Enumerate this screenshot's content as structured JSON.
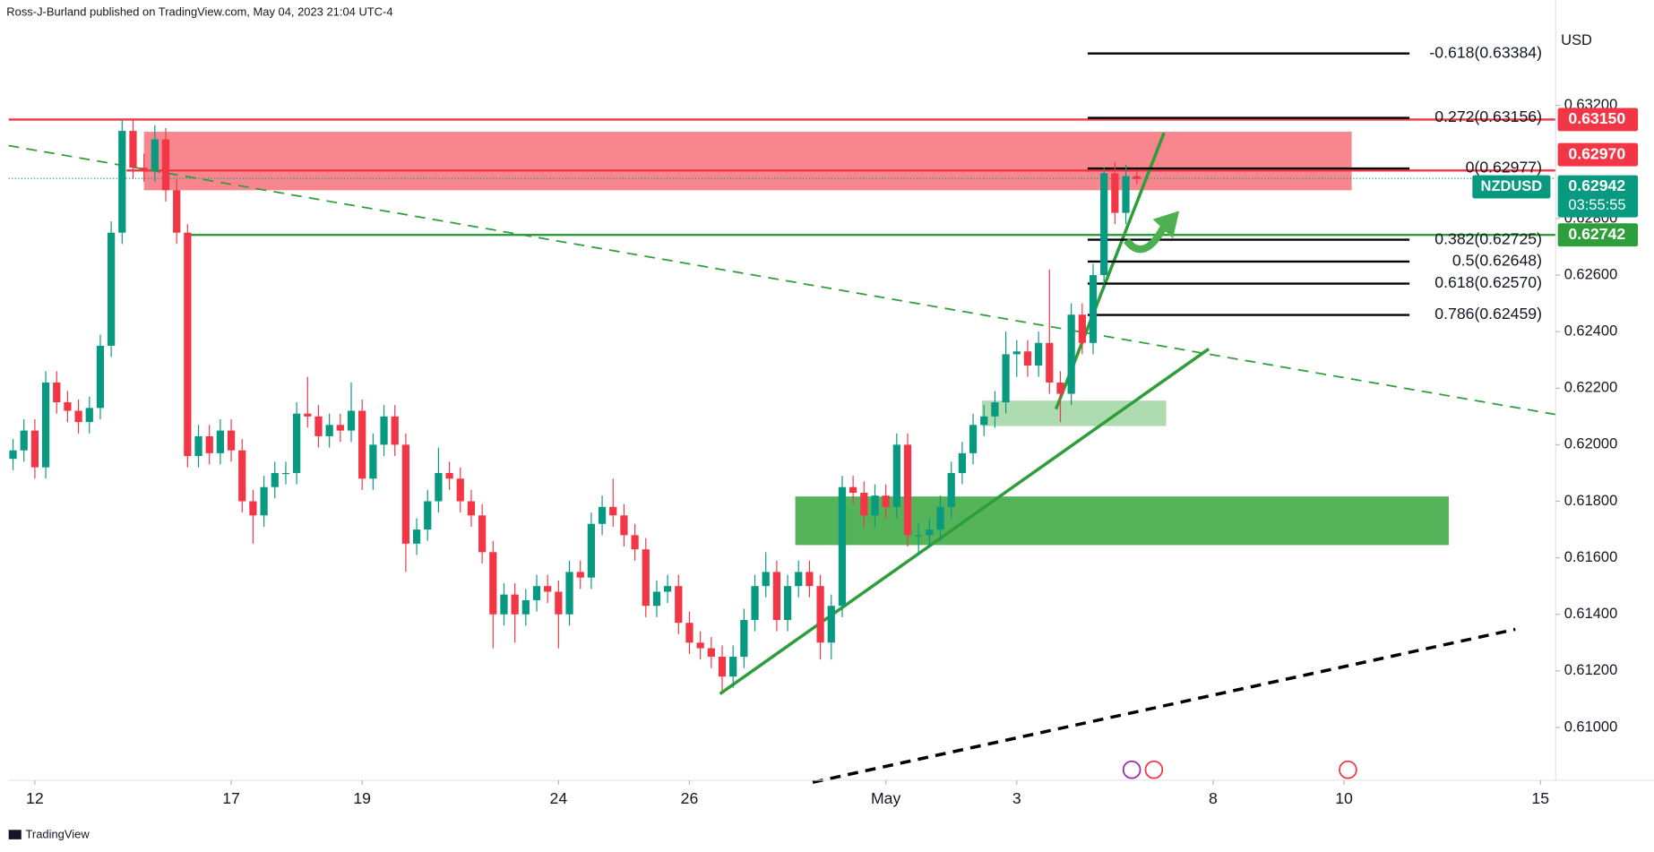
{
  "chart_data": {
    "type": "candlestick",
    "header": "Ross-J-Burland published on TradingView.com, May 04, 2023 21:04 UTC-4",
    "currency": "USD",
    "symbol": "NZDUSD",
    "countdown": "03:55:55",
    "footer": "TradingView",
    "up_color": "#089981",
    "down_color": "#f23645",
    "xlim": [
      -2.4,
      139.4
    ],
    "ylim": [
      0.60813,
      0.63573
    ],
    "xticks": [
      {
        "value": 0,
        "label": "12"
      },
      {
        "value": 18,
        "label": "17"
      },
      {
        "value": 30,
        "label": "19"
      },
      {
        "value": 48,
        "label": "24"
      },
      {
        "value": 60,
        "label": "26"
      },
      {
        "value": 78,
        "label": "May"
      },
      {
        "value": 90,
        "label": "3"
      },
      {
        "value": 108,
        "label": "8"
      },
      {
        "value": 120,
        "label": "10"
      },
      {
        "value": 138,
        "label": "15"
      }
    ],
    "yticks": [
      {
        "value": 0.632,
        "label": "0.63200"
      },
      {
        "value": 0.628,
        "label": "0.62800"
      },
      {
        "value": 0.626,
        "label": "0.62600"
      },
      {
        "value": 0.624,
        "label": "0.62400"
      },
      {
        "value": 0.622,
        "label": "0.62200"
      },
      {
        "value": 0.62,
        "label": "0.62000"
      },
      {
        "value": 0.618,
        "label": "0.61800"
      },
      {
        "value": 0.616,
        "label": "0.61600"
      },
      {
        "value": 0.614,
        "label": "0.61400"
      },
      {
        "value": 0.612,
        "label": "0.61200"
      },
      {
        "value": 0.61,
        "label": "0.61000"
      }
    ],
    "x": [
      -2,
      -1,
      0,
      1,
      2,
      3,
      4,
      5,
      6,
      7,
      8,
      9,
      10,
      11,
      12,
      13,
      14,
      15,
      16,
      17,
      18,
      19,
      20,
      21,
      22,
      23,
      24,
      25,
      26,
      27,
      28,
      29,
      30,
      31,
      32,
      33,
      34,
      35,
      36,
      37,
      38,
      39,
      40,
      41,
      42,
      43,
      44,
      45,
      46,
      47,
      48,
      49,
      50,
      51,
      52,
      53,
      54,
      55,
      56,
      57,
      58,
      59,
      60,
      61,
      62,
      63,
      64,
      65,
      66,
      67,
      68,
      69,
      70,
      71,
      72,
      73,
      74,
      75,
      76,
      77,
      78,
      79,
      80,
      81,
      82,
      83,
      84,
      85,
      86,
      87,
      88,
      89,
      90,
      91,
      92,
      93,
      94,
      95,
      96,
      97,
      98,
      99,
      100,
      101
    ],
    "ohlc": [
      [
        0.6195,
        0.6202,
        0.6191,
        0.6198
      ],
      [
        0.6198,
        0.6209,
        0.6194,
        0.6205
      ],
      [
        0.6205,
        0.6209,
        0.6188,
        0.6192
      ],
      [
        0.6192,
        0.6226,
        0.6188,
        0.6222
      ],
      [
        0.6222,
        0.6226,
        0.6211,
        0.6215
      ],
      [
        0.6215,
        0.6219,
        0.6208,
        0.6212
      ],
      [
        0.6212,
        0.6216,
        0.6204,
        0.6208
      ],
      [
        0.6208,
        0.6217,
        0.6204,
        0.6213
      ],
      [
        0.6213,
        0.6239,
        0.6209,
        0.6235
      ],
      [
        0.6235,
        0.6279,
        0.6231,
        0.6275
      ],
      [
        0.6275,
        0.6315,
        0.6271,
        0.6311
      ],
      [
        0.6311,
        0.6315,
        0.6294,
        0.6298
      ],
      [
        0.6298,
        0.6303,
        0.6293,
        0.6297
      ],
      [
        0.6297,
        0.6313,
        0.6293,
        0.6308
      ],
      [
        0.6308,
        0.6312,
        0.6286,
        0.629
      ],
      [
        0.629,
        0.6294,
        0.6271,
        0.6275
      ],
      [
        0.6275,
        0.6278,
        0.6192,
        0.6196
      ],
      [
        0.6196,
        0.6207,
        0.6192,
        0.6203
      ],
      [
        0.6203,
        0.6207,
        0.6193,
        0.6197
      ],
      [
        0.6197,
        0.6209,
        0.6193,
        0.6205
      ],
      [
        0.6205,
        0.6209,
        0.6194,
        0.6198
      ],
      [
        0.6198,
        0.6202,
        0.6176,
        0.618
      ],
      [
        0.618,
        0.6184,
        0.6165,
        0.6175
      ],
      [
        0.6175,
        0.6189,
        0.6171,
        0.6185
      ],
      [
        0.6185,
        0.6194,
        0.6181,
        0.619
      ],
      [
        0.619,
        0.6194,
        0.6186,
        0.619
      ],
      [
        0.619,
        0.6215,
        0.6186,
        0.6211
      ],
      [
        0.6211,
        0.6224,
        0.6206,
        0.621
      ],
      [
        0.621,
        0.6214,
        0.6199,
        0.6203
      ],
      [
        0.6203,
        0.6211,
        0.6199,
        0.6207
      ],
      [
        0.6207,
        0.6211,
        0.6201,
        0.6205
      ],
      [
        0.6205,
        0.6222,
        0.6201,
        0.6212
      ],
      [
        0.6212,
        0.6216,
        0.6184,
        0.6188
      ],
      [
        0.6188,
        0.6204,
        0.6184,
        0.62
      ],
      [
        0.62,
        0.6214,
        0.6196,
        0.621
      ],
      [
        0.621,
        0.6214,
        0.6196,
        0.62
      ],
      [
        0.62,
        0.6204,
        0.6155,
        0.6165
      ],
      [
        0.6165,
        0.6174,
        0.6161,
        0.617
      ],
      [
        0.617,
        0.6184,
        0.6166,
        0.618
      ],
      [
        0.618,
        0.6199,
        0.6176,
        0.619
      ],
      [
        0.619,
        0.6194,
        0.6184,
        0.6188
      ],
      [
        0.6188,
        0.6192,
        0.6176,
        0.618
      ],
      [
        0.618,
        0.6184,
        0.6171,
        0.6175
      ],
      [
        0.6175,
        0.6179,
        0.6158,
        0.6162
      ],
      [
        0.6162,
        0.6166,
        0.6128,
        0.614
      ],
      [
        0.614,
        0.6151,
        0.6136,
        0.6147
      ],
      [
        0.6147,
        0.6151,
        0.613,
        0.614
      ],
      [
        0.614,
        0.6149,
        0.6136,
        0.6145
      ],
      [
        0.6145,
        0.6154,
        0.6141,
        0.615
      ],
      [
        0.615,
        0.6154,
        0.6144,
        0.6148
      ],
      [
        0.6148,
        0.6152,
        0.6128,
        0.614
      ],
      [
        0.614,
        0.6159,
        0.6136,
        0.6155
      ],
      [
        0.6155,
        0.6159,
        0.6149,
        0.6153
      ],
      [
        0.6153,
        0.6176,
        0.6149,
        0.6172
      ],
      [
        0.6172,
        0.6182,
        0.6168,
        0.6178
      ],
      [
        0.6178,
        0.6188,
        0.6171,
        0.6175
      ],
      [
        0.6175,
        0.6179,
        0.6164,
        0.6168
      ],
      [
        0.6168,
        0.6172,
        0.6159,
        0.6163
      ],
      [
        0.6163,
        0.6167,
        0.6139,
        0.6143
      ],
      [
        0.6143,
        0.6152,
        0.6139,
        0.6148
      ],
      [
        0.6148,
        0.6154,
        0.6144,
        0.615
      ],
      [
        0.615,
        0.6154,
        0.6133,
        0.6137
      ],
      [
        0.6137,
        0.6141,
        0.6126,
        0.613
      ],
      [
        0.613,
        0.6134,
        0.6124,
        0.6128
      ],
      [
        0.6128,
        0.6132,
        0.6121,
        0.6125
      ],
      [
        0.6125,
        0.6129,
        0.6113,
        0.6118
      ],
      [
        0.6118,
        0.6129,
        0.6114,
        0.6125
      ],
      [
        0.6125,
        0.6142,
        0.6121,
        0.6138
      ],
      [
        0.6138,
        0.6154,
        0.6134,
        0.615
      ],
      [
        0.615,
        0.6162,
        0.6146,
        0.6155
      ],
      [
        0.6155,
        0.6159,
        0.6134,
        0.6138
      ],
      [
        0.6138,
        0.6154,
        0.6134,
        0.615
      ],
      [
        0.615,
        0.6159,
        0.6146,
        0.6155
      ],
      [
        0.6155,
        0.6159,
        0.6146,
        0.615
      ],
      [
        0.615,
        0.6154,
        0.6124,
        0.613
      ],
      [
        0.613,
        0.6147,
        0.6124,
        0.6143
      ],
      [
        0.6143,
        0.6189,
        0.6139,
        0.6185
      ],
      [
        0.6185,
        0.6189,
        0.6179,
        0.6183
      ],
      [
        0.6183,
        0.6187,
        0.6171,
        0.6175
      ],
      [
        0.6175,
        0.6186,
        0.6171,
        0.6182
      ],
      [
        0.6182,
        0.6186,
        0.6174,
        0.6178
      ],
      [
        0.6178,
        0.6204,
        0.6174,
        0.62
      ],
      [
        0.62,
        0.6204,
        0.6164,
        0.6168
      ],
      [
        0.6168,
        0.6172,
        0.6161,
        0.6168
      ],
      [
        0.6168,
        0.6174,
        0.6164,
        0.617
      ],
      [
        0.617,
        0.6182,
        0.6166,
        0.6178
      ],
      [
        0.6178,
        0.6194,
        0.6174,
        0.619
      ],
      [
        0.619,
        0.6201,
        0.6186,
        0.6197
      ],
      [
        0.6197,
        0.6211,
        0.6193,
        0.6207
      ],
      [
        0.6207,
        0.6214,
        0.6203,
        0.621
      ],
      [
        0.621,
        0.6219,
        0.6206,
        0.6215
      ],
      [
        0.6215,
        0.624,
        0.6211,
        0.6232
      ],
      [
        0.6232,
        0.6237,
        0.6224,
        0.6233
      ],
      [
        0.6233,
        0.6237,
        0.6224,
        0.6228
      ],
      [
        0.6228,
        0.624,
        0.6224,
        0.6236
      ],
      [
        0.6236,
        0.6262,
        0.6218,
        0.6222
      ],
      [
        0.6222,
        0.6226,
        0.6208,
        0.6218
      ],
      [
        0.6218,
        0.625,
        0.6214,
        0.6246
      ],
      [
        0.6246,
        0.625,
        0.6232,
        0.6236
      ],
      [
        0.6236,
        0.6264,
        0.6232,
        0.626
      ],
      [
        0.626,
        0.6298,
        0.6256,
        0.6296
      ],
      [
        0.6296,
        0.63,
        0.6278,
        0.6282
      ],
      [
        0.6282,
        0.6299,
        0.6278,
        0.6295
      ],
      [
        0.6295,
        0.6297,
        0.6292,
        0.6294
      ]
    ],
    "zones": [
      {
        "x": [
          10,
          120.7
        ],
        "price": [
          0.629,
          0.63107
        ],
        "color": "#f23645",
        "opacity": 0.6
      },
      {
        "x": [
          69.7,
          129.6
        ],
        "price": [
          0.61645,
          0.61817
        ],
        "color": "#4caf50",
        "opacity": 0.95
      },
      {
        "x": [
          86.8,
          103.7
        ],
        "price": [
          0.62066,
          0.62156
        ],
        "color": "#4caf50",
        "opacity": 0.45
      }
    ],
    "horizontal_lines": [
      {
        "x": -2.4,
        "price": 0.6315,
        "color": "#f23645",
        "style": "solid"
      },
      {
        "x": 8.4,
        "price": 0.6297,
        "color": "#f23645",
        "style": "solid"
      },
      {
        "x": 13.7,
        "price": 0.62742,
        "color": "#2e9e3a",
        "style": "solid"
      },
      {
        "x": -2.4,
        "price": 0.62942,
        "color": "#089981",
        "style": "dotted"
      }
    ],
    "trendlines": [
      {
        "x": [
          -2.4,
          139.4
        ],
        "price": [
          0.63058,
          0.62107
        ],
        "color": "#2e9e3a",
        "style": "dashed",
        "width": 1.5
      },
      {
        "x": [
          62.8,
          107.6
        ],
        "price": [
          0.61119,
          0.62339
        ],
        "color": "#2e9e3a",
        "style": "solid",
        "width": 3
      },
      {
        "x": [
          93.6,
          103.5
        ],
        "price": [
          0.62126,
          0.63103
        ],
        "color": "#2e9e3a",
        "style": "solid",
        "width": 3
      },
      {
        "x": [
          71.3,
          135.7
        ],
        "price": [
          0.60806,
          0.61347
        ],
        "color": "#000000",
        "style": "dashed",
        "width": 3
      }
    ],
    "fib": {
      "x": [
        96.5,
        126
      ],
      "levels": [
        {
          "label": "-0.618(0.63384)",
          "price": 0.63384
        },
        {
          "label": "0.272(0.63156)",
          "price": 0.63156
        },
        {
          "label": "0(0.62977)",
          "price": 0.62977
        },
        {
          "label": "0.382(0.62725)",
          "price": 0.62725
        },
        {
          "label": "0.5(0.62648)",
          "price": 0.62648
        },
        {
          "label": "0.618(0.62570)",
          "price": 0.6257
        },
        {
          "label": "0.786(0.62459)",
          "price": 0.62459
        }
      ]
    },
    "price_labels": [
      {
        "value": 0.6315,
        "label": "0.63150",
        "color": "#f23645"
      },
      {
        "value": 0.6297,
        "label": "0.62970",
        "color": "#f23645"
      },
      {
        "value": 0.62942,
        "label": "0.62942",
        "color": "#089981"
      },
      {
        "value": 0.62742,
        "label": "0.62742",
        "color": "#2e9e3a"
      }
    ]
  }
}
